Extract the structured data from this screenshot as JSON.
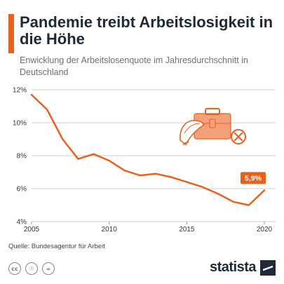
{
  "header": {
    "title": "Pandemie treibt Arbeitslosigkeit in die Höhe",
    "subtitle": "Enwicklung der Arbeitslosenquote im Jahresdurchschnitt in Deutschland"
  },
  "colors": {
    "accent": "#e8611c",
    "text_dark": "#1f2a36",
    "grid": "#cccccc"
  },
  "chart_data": {
    "type": "line",
    "title": "Pandemie treibt Arbeitslosigkeit in die Höhe",
    "subtitle": "Enwicklung der Arbeitslosenquote im Jahresdurchschnitt in Deutschland",
    "xlabel": "",
    "ylabel": "",
    "x": [
      2005,
      2006,
      2007,
      2008,
      2009,
      2010,
      2011,
      2012,
      2013,
      2014,
      2015,
      2016,
      2017,
      2018,
      2019,
      2020
    ],
    "series": [
      {
        "values": [
          11.7,
          10.8,
          9.0,
          7.8,
          8.1,
          7.7,
          7.1,
          6.8,
          6.9,
          6.7,
          6.4,
          6.1,
          5.7,
          5.2,
          5.0,
          5.9
        ]
      }
    ],
    "xlim": [
      2005,
      2020
    ],
    "ylim": [
      4,
      12
    ],
    "xticks": [
      "2005",
      "2010",
      "2015",
      "2020"
    ],
    "yticks": [
      "4%",
      "6%",
      "8%",
      "10%",
      "12%"
    ],
    "grid": true,
    "annotation": {
      "label": "5,9%",
      "x": 2020,
      "y": 5.9
    }
  },
  "illustration": {
    "icons": [
      "hard-hat-icon",
      "briefcase-icon",
      "cross-circle-icon"
    ]
  },
  "footer": {
    "source": "Quelle: Bundesagentur für Arbeit",
    "license_icons": [
      "cc",
      "by",
      "nd"
    ],
    "brand": "statista"
  }
}
